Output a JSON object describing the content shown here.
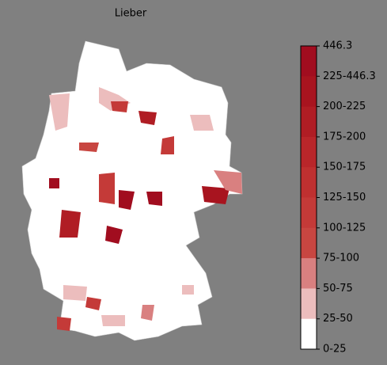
{
  "title": "Lieber",
  "colorbar": {
    "ticks": [
      "446.3",
      "225-446.3",
      "200-225",
      "175-200",
      "150-175",
      "125-150",
      "100-125",
      "75-100",
      "50-75",
      "25-50",
      "0-25"
    ],
    "colors": [
      "#a10d1f",
      "#a8141f",
      "#b01d24",
      "#b9262a",
      "#bf3030",
      "#c43a38",
      "#c84641",
      "#d98080",
      "#ecbdbd",
      "#ffffff"
    ]
  }
}
